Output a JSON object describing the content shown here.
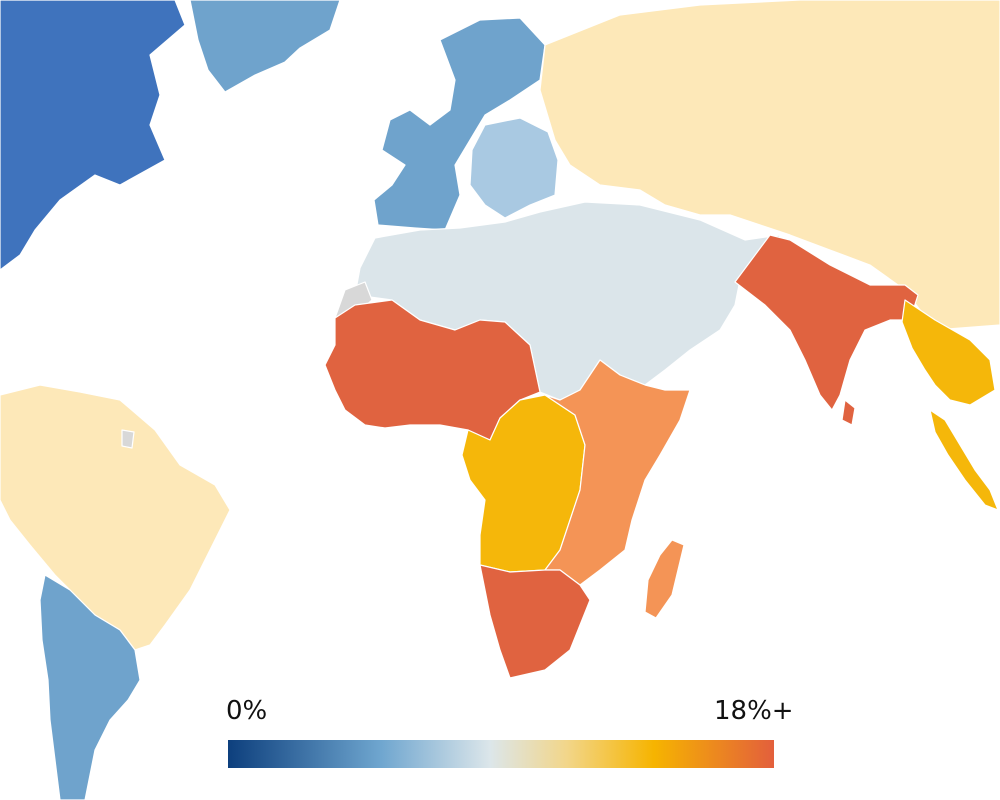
{
  "legend": {
    "min_label": "0%",
    "max_label": "18%+",
    "stops": [
      {
        "offset": 0.0,
        "color": "#0d3f7d"
      },
      {
        "offset": 0.28,
        "color": "#6fa6cf"
      },
      {
        "offset": 0.48,
        "color": "#dce6ea"
      },
      {
        "offset": 0.62,
        "color": "#f2d68a"
      },
      {
        "offset": 0.78,
        "color": "#f6b400"
      },
      {
        "offset": 1.0,
        "color": "#e35f3c"
      }
    ]
  },
  "palette": {
    "ocean": "#ffffff",
    "dark_blue": "#3f73bd",
    "mid_blue": "#6fa3cc",
    "light_blue": "#a9c9e2",
    "pale_grey_blue": "#dbe5ea",
    "no_data": "#d8d8d8",
    "pale_yellow": "#fde8b8",
    "yellow": "#f5b70a",
    "orange": "#f49456",
    "red_orange": "#e06340"
  },
  "regions": [
    {
      "name": "canada-usa",
      "color_key": "dark_blue"
    },
    {
      "name": "greenland",
      "color_key": "mid_blue"
    },
    {
      "name": "western-europe",
      "color_key": "mid_blue"
    },
    {
      "name": "eastern-europe",
      "color_key": "light_blue"
    },
    {
      "name": "russia-central-asia-china",
      "color_key": "pale_yellow"
    },
    {
      "name": "middle-east-north-africa",
      "color_key": "pale_grey_blue"
    },
    {
      "name": "west-africa",
      "color_key": "red_orange"
    },
    {
      "name": "central-africa",
      "color_key": "yellow"
    },
    {
      "name": "east-africa",
      "color_key": "orange"
    },
    {
      "name": "southern-africa",
      "color_key": "red_orange"
    },
    {
      "name": "madagascar",
      "color_key": "orange"
    },
    {
      "name": "south-asia",
      "color_key": "red_orange"
    },
    {
      "name": "southeast-asia",
      "color_key": "yellow"
    },
    {
      "name": "south-america-north",
      "color_key": "pale_yellow"
    },
    {
      "name": "south-america-south",
      "color_key": "mid_blue"
    },
    {
      "name": "western-sahara",
      "color_key": "no_data"
    },
    {
      "name": "french-guiana",
      "color_key": "no_data"
    }
  ]
}
